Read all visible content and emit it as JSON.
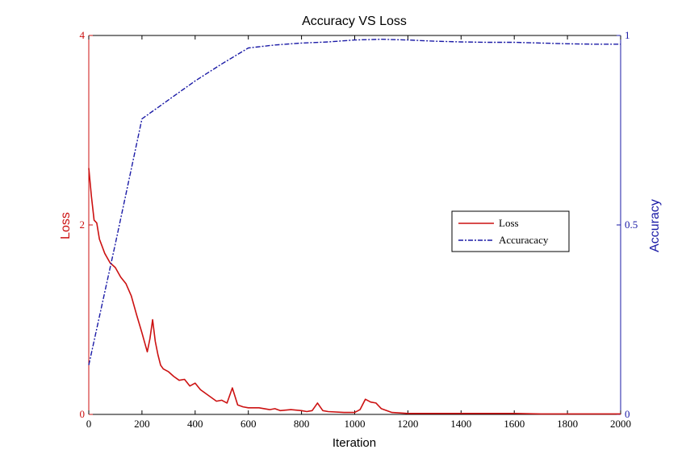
{
  "chart_data": {
    "type": "line",
    "title": "Accuracy VS Loss",
    "xlabel": "Iteration",
    "ylabel_left": "Loss",
    "ylabel_right": "Accuracy",
    "xlim": [
      0,
      2000
    ],
    "ylim_left": [
      0,
      4
    ],
    "ylim_right": [
      0,
      1
    ],
    "x_ticks": [
      "0",
      "200",
      "400",
      "600",
      "800",
      "1000",
      "1200",
      "1400",
      "1600",
      "1800",
      "2000"
    ],
    "y_left_ticks": [
      "0",
      "2",
      "4"
    ],
    "y_right_ticks": [
      "0",
      "0.5",
      "1"
    ],
    "grid": false,
    "legend_position": "center-right",
    "colors": {
      "loss": "#cc1111",
      "accuracy": "#1a1aa6",
      "axis_left": "#cc1111",
      "axis_right": "#1a1aa6"
    },
    "series": [
      {
        "name": "Loss",
        "axis": "left",
        "style": "solid",
        "x": [
          0,
          10,
          20,
          30,
          40,
          60,
          80,
          100,
          120,
          140,
          160,
          180,
          200,
          210,
          220,
          230,
          240,
          250,
          260,
          270,
          280,
          300,
          320,
          340,
          360,
          380,
          400,
          420,
          440,
          460,
          480,
          500,
          520,
          540,
          560,
          580,
          600,
          640,
          680,
          700,
          720,
          760,
          800,
          820,
          840,
          860,
          880,
          900,
          960,
          1000,
          1020,
          1040,
          1060,
          1080,
          1100,
          1140,
          1200,
          1300,
          1400,
          1500,
          1600,
          1700,
          1800,
          1900,
          2000
        ],
        "y": [
          2.6,
          2.3,
          2.05,
          2.02,
          1.85,
          1.7,
          1.6,
          1.55,
          1.45,
          1.38,
          1.25,
          1.05,
          0.86,
          0.76,
          0.66,
          0.8,
          1.0,
          0.77,
          0.63,
          0.52,
          0.48,
          0.45,
          0.4,
          0.36,
          0.37,
          0.3,
          0.33,
          0.26,
          0.22,
          0.18,
          0.14,
          0.15,
          0.12,
          0.28,
          0.1,
          0.08,
          0.07,
          0.07,
          0.05,
          0.06,
          0.04,
          0.05,
          0.04,
          0.03,
          0.04,
          0.12,
          0.04,
          0.03,
          0.02,
          0.02,
          0.05,
          0.16,
          0.13,
          0.12,
          0.06,
          0.02,
          0.01,
          0.01,
          0.01,
          0.01,
          0.01,
          0.005,
          0.005,
          0.005,
          0.005
        ]
      },
      {
        "name": "Accuracacy",
        "axis": "right",
        "style": "dash-dot",
        "x": [
          0,
          100,
          200,
          300,
          400,
          500,
          600,
          700,
          800,
          900,
          1000,
          1100,
          1200,
          1300,
          1400,
          1500,
          1600,
          1700,
          1800,
          1900,
          2000
        ],
        "y": [
          0.13,
          0.45,
          0.78,
          0.83,
          0.88,
          0.925,
          0.967,
          0.975,
          0.98,
          0.983,
          0.988,
          0.99,
          0.988,
          0.985,
          0.983,
          0.982,
          0.982,
          0.98,
          0.978,
          0.977,
          0.977
        ]
      }
    ]
  }
}
